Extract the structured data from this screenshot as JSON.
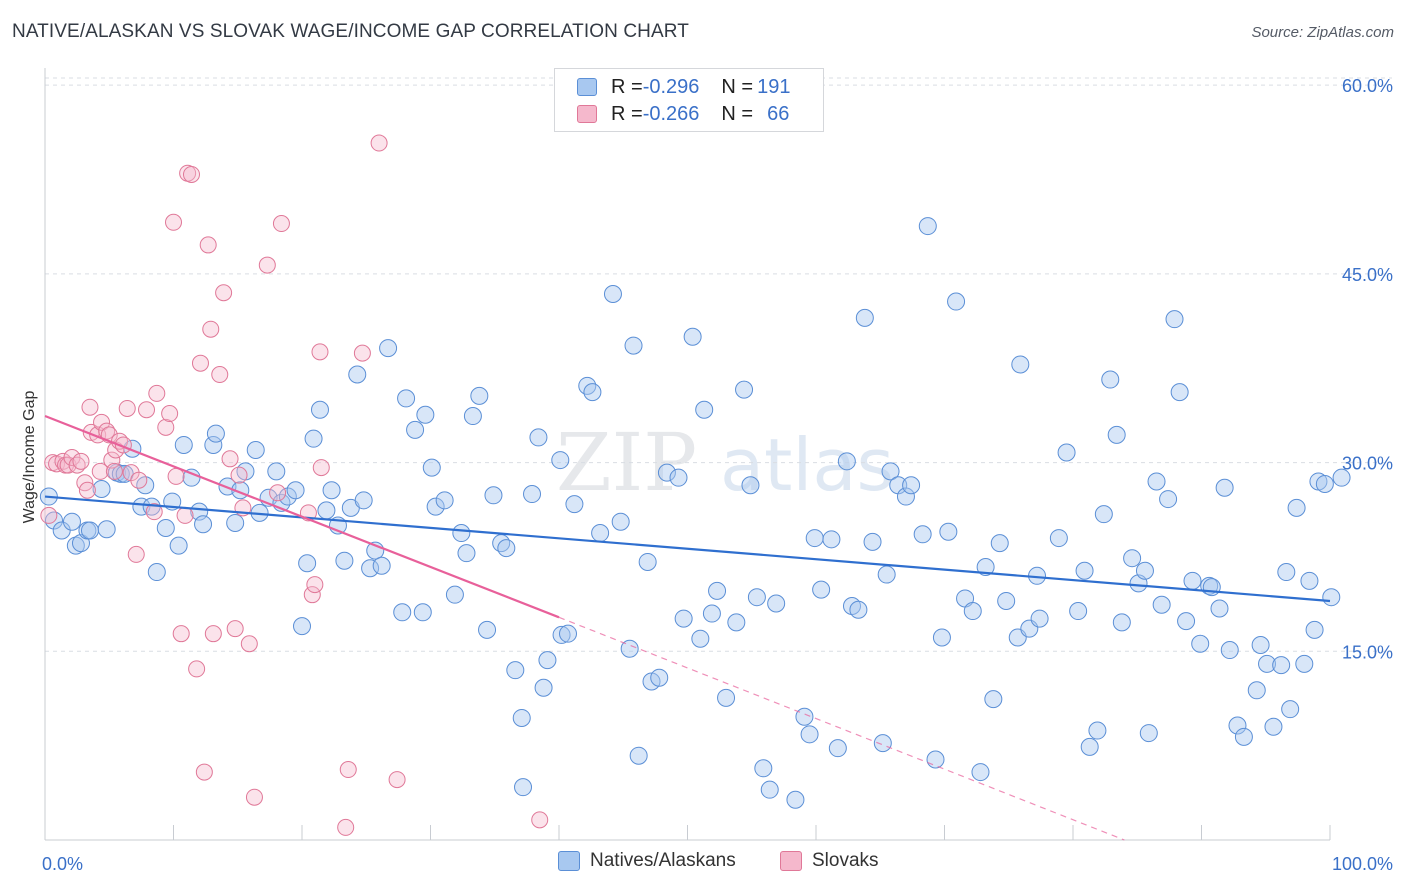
{
  "title": "NATIVE/ALASKAN VS SLOVAK WAGE/INCOME GAP CORRELATION CHART",
  "source": "Source: ZipAtlas.com",
  "watermark": {
    "zip": "ZIP",
    "atlas": "atlas"
  },
  "legend_top": [
    {
      "r_label": "R = ",
      "r_value": "-0.296",
      "n_label": "N = ",
      "n_value": "191",
      "color": "#a8c8f0"
    },
    {
      "r_label": "R = ",
      "r_value": "-0.266",
      "n_label": "N = ",
      "n_value": "66",
      "color": "#f5b8cc"
    }
  ],
  "legend_bottom": [
    {
      "label": "Natives/Alaskans",
      "color": "#a8c8f0"
    },
    {
      "label": "Slovaks",
      "color": "#f5b8cc"
    }
  ],
  "colors": {
    "blue_fill": "#a8c8f0",
    "blue_stroke": "#5b8fd6",
    "blue_line": "#2f6fcf",
    "pink_fill": "#f5b8cc",
    "pink_stroke": "#e07898",
    "pink_line": "#e8609a",
    "tick_label": "#3a70c8",
    "grid": "#d9dde3"
  },
  "chart_data": {
    "type": "scatter",
    "xlabel": "",
    "ylabel": "Wage/Income Gap",
    "xlim": [
      0,
      100
    ],
    "ylim": [
      0,
      62
    ],
    "x_tick_labels": [
      "0.0%",
      "100.0%"
    ],
    "x_tick_values": [
      0,
      100
    ],
    "x_minor_ticks": [
      10,
      20,
      30,
      40,
      50,
      60,
      70,
      80,
      90,
      100
    ],
    "y_tick_labels": [
      "15.0%",
      "30.0%",
      "45.0%",
      "60.0%"
    ],
    "y_tick_values": [
      15,
      30,
      45,
      60
    ],
    "grid": "horizontal dashed",
    "legend_position": "top-center",
    "series": [
      {
        "name": "Natives/Alaskans",
        "color": "#a8c8f0",
        "trend": {
          "x": [
            0,
            100
          ],
          "y": [
            27.3,
            19.0
          ]
        },
        "points": [
          [
            0.3,
            27.3
          ],
          [
            0.7,
            25.4
          ],
          [
            1.3,
            24.6
          ],
          [
            2.1,
            25.3
          ],
          [
            2.4,
            23.4
          ],
          [
            2.8,
            23.6
          ],
          [
            3.3,
            24.6
          ],
          [
            3.5,
            24.6
          ],
          [
            4.4,
            27.9
          ],
          [
            4.8,
            24.7
          ],
          [
            5.6,
            29.2
          ],
          [
            5.9,
            29.1
          ],
          [
            6.2,
            29.1
          ],
          [
            6.8,
            31.1
          ],
          [
            7.5,
            26.5
          ],
          [
            7.8,
            28.2
          ],
          [
            8.3,
            26.5
          ],
          [
            8.7,
            21.3
          ],
          [
            9.4,
            24.8
          ],
          [
            9.9,
            26.9
          ],
          [
            10.4,
            23.4
          ],
          [
            10.8,
            31.4
          ],
          [
            11.4,
            28.8
          ],
          [
            12.0,
            26.1
          ],
          [
            12.3,
            25.1
          ],
          [
            13.1,
            31.4
          ],
          [
            13.3,
            32.3
          ],
          [
            14.2,
            28.1
          ],
          [
            14.8,
            25.2
          ],
          [
            15.2,
            27.8
          ],
          [
            15.6,
            29.3
          ],
          [
            16.4,
            31.0
          ],
          [
            16.7,
            26.0
          ],
          [
            17.4,
            27.2
          ],
          [
            18.0,
            29.3
          ],
          [
            18.4,
            26.8
          ],
          [
            18.9,
            27.3
          ],
          [
            19.5,
            27.8
          ],
          [
            20.0,
            17.0
          ],
          [
            20.4,
            22.0
          ],
          [
            20.9,
            31.9
          ],
          [
            21.4,
            34.2
          ],
          [
            21.9,
            26.2
          ],
          [
            22.3,
            27.8
          ],
          [
            22.8,
            25.0
          ],
          [
            23.3,
            22.2
          ],
          [
            23.8,
            26.4
          ],
          [
            24.3,
            37.0
          ],
          [
            24.8,
            27.0
          ],
          [
            25.3,
            21.6
          ],
          [
            25.7,
            23.0
          ],
          [
            26.2,
            21.8
          ],
          [
            26.7,
            39.1
          ],
          [
            27.8,
            18.1
          ],
          [
            28.1,
            35.1
          ],
          [
            28.8,
            32.6
          ],
          [
            29.4,
            18.1
          ],
          [
            29.6,
            33.8
          ],
          [
            30.1,
            29.6
          ],
          [
            30.4,
            26.5
          ],
          [
            31.1,
            27.0
          ],
          [
            31.9,
            19.5
          ],
          [
            32.4,
            24.4
          ],
          [
            32.8,
            22.8
          ],
          [
            33.3,
            33.7
          ],
          [
            33.8,
            35.3
          ],
          [
            34.4,
            16.7
          ],
          [
            34.9,
            27.4
          ],
          [
            35.5,
            23.6
          ],
          [
            35.9,
            23.2
          ],
          [
            36.6,
            13.5
          ],
          [
            37.1,
            9.7
          ],
          [
            37.2,
            4.2
          ],
          [
            37.9,
            27.5
          ],
          [
            38.4,
            32.0
          ],
          [
            38.8,
            12.1
          ],
          [
            39.1,
            14.3
          ],
          [
            40.1,
            30.2
          ],
          [
            40.2,
            16.3
          ],
          [
            40.7,
            16.4
          ],
          [
            41.2,
            26.7
          ],
          [
            42.2,
            36.1
          ],
          [
            42.6,
            35.6
          ],
          [
            43.2,
            24.4
          ],
          [
            44.2,
            43.4
          ],
          [
            44.8,
            25.3
          ],
          [
            45.5,
            15.2
          ],
          [
            45.8,
            39.3
          ],
          [
            46.2,
            6.7
          ],
          [
            46.9,
            22.1
          ],
          [
            47.2,
            12.6
          ],
          [
            47.8,
            12.9
          ],
          [
            48.4,
            29.2
          ],
          [
            49.3,
            28.8
          ],
          [
            49.7,
            17.6
          ],
          [
            50.4,
            40.0
          ],
          [
            51.0,
            16.0
          ],
          [
            51.3,
            34.2
          ],
          [
            51.9,
            18.0
          ],
          [
            52.3,
            19.8
          ],
          [
            53.0,
            11.3
          ],
          [
            53.8,
            17.3
          ],
          [
            54.4,
            35.8
          ],
          [
            54.9,
            28.2
          ],
          [
            55.4,
            19.3
          ],
          [
            55.9,
            5.7
          ],
          [
            56.4,
            4.0
          ],
          [
            56.9,
            18.8
          ],
          [
            58.4,
            3.2
          ],
          [
            59.1,
            9.8
          ],
          [
            59.5,
            8.4
          ],
          [
            59.9,
            24.0
          ],
          [
            60.4,
            19.9
          ],
          [
            61.2,
            23.9
          ],
          [
            61.7,
            7.3
          ],
          [
            62.4,
            30.1
          ],
          [
            62.8,
            18.6
          ],
          [
            63.3,
            18.3
          ],
          [
            63.8,
            41.5
          ],
          [
            64.4,
            23.7
          ],
          [
            65.2,
            7.7
          ],
          [
            65.5,
            21.1
          ],
          [
            65.8,
            29.3
          ],
          [
            66.4,
            28.2
          ],
          [
            67.0,
            27.3
          ],
          [
            67.4,
            28.2
          ],
          [
            68.3,
            24.3
          ],
          [
            68.7,
            48.8
          ],
          [
            69.3,
            6.4
          ],
          [
            69.8,
            16.1
          ],
          [
            70.3,
            24.5
          ],
          [
            70.9,
            42.8
          ],
          [
            71.6,
            19.2
          ],
          [
            72.2,
            18.2
          ],
          [
            72.8,
            5.4
          ],
          [
            73.2,
            21.7
          ],
          [
            73.8,
            11.2
          ],
          [
            74.3,
            23.6
          ],
          [
            74.8,
            19.0
          ],
          [
            75.7,
            16.1
          ],
          [
            75.9,
            37.8
          ],
          [
            76.6,
            16.8
          ],
          [
            77.2,
            21.0
          ],
          [
            77.4,
            17.6
          ],
          [
            78.9,
            24.0
          ],
          [
            79.5,
            30.8
          ],
          [
            80.4,
            18.2
          ],
          [
            80.9,
            21.4
          ],
          [
            81.3,
            7.4
          ],
          [
            81.9,
            8.7
          ],
          [
            82.4,
            25.9
          ],
          [
            82.9,
            36.6
          ],
          [
            83.4,
            32.2
          ],
          [
            83.8,
            17.3
          ],
          [
            84.6,
            22.4
          ],
          [
            85.1,
            20.4
          ],
          [
            85.6,
            21.4
          ],
          [
            85.9,
            8.5
          ],
          [
            86.5,
            28.5
          ],
          [
            86.9,
            18.7
          ],
          [
            87.4,
            27.1
          ],
          [
            87.9,
            41.4
          ],
          [
            88.3,
            35.6
          ],
          [
            88.8,
            17.4
          ],
          [
            89.3,
            20.6
          ],
          [
            89.9,
            15.6
          ],
          [
            90.6,
            20.2
          ],
          [
            90.8,
            20.1
          ],
          [
            91.4,
            18.4
          ],
          [
            91.8,
            28.0
          ],
          [
            92.2,
            15.1
          ],
          [
            92.8,
            9.1
          ],
          [
            93.3,
            8.2
          ],
          [
            94.3,
            11.9
          ],
          [
            94.6,
            15.5
          ],
          [
            95.1,
            14.0
          ],
          [
            95.6,
            9.0
          ],
          [
            96.2,
            13.9
          ],
          [
            96.6,
            21.3
          ],
          [
            96.9,
            10.4
          ],
          [
            97.4,
            26.4
          ],
          [
            98.0,
            14.0
          ],
          [
            98.4,
            20.6
          ],
          [
            98.8,
            16.7
          ],
          [
            99.1,
            28.5
          ],
          [
            99.6,
            28.3
          ],
          [
            100.1,
            19.3
          ],
          [
            100.9,
            28.8
          ]
        ]
      },
      {
        "name": "Slovaks",
        "color": "#f5b8cc",
        "trend": {
          "x": [
            0,
            40
          ],
          "y": [
            33.7,
            17.7
          ]
        },
        "trend_dashed": {
          "x": [
            40,
            84
          ],
          "y": [
            17.7,
            0
          ]
        },
        "points": [
          [
            0.3,
            25.8
          ],
          [
            0.6,
            30.0
          ],
          [
            0.9,
            29.9
          ],
          [
            1.4,
            30.1
          ],
          [
            1.6,
            29.8
          ],
          [
            1.8,
            29.8
          ],
          [
            2.1,
            30.4
          ],
          [
            2.5,
            29.8
          ],
          [
            2.8,
            30.1
          ],
          [
            3.1,
            28.4
          ],
          [
            3.3,
            27.8
          ],
          [
            3.5,
            34.4
          ],
          [
            3.6,
            32.4
          ],
          [
            4.1,
            32.2
          ],
          [
            4.3,
            29.3
          ],
          [
            4.4,
            33.2
          ],
          [
            4.8,
            32.5
          ],
          [
            5.0,
            32.2
          ],
          [
            5.2,
            30.2
          ],
          [
            5.4,
            29.3
          ],
          [
            5.5,
            31.0
          ],
          [
            5.8,
            31.7
          ],
          [
            6.1,
            31.4
          ],
          [
            6.4,
            34.3
          ],
          [
            6.7,
            29.2
          ],
          [
            7.1,
            22.7
          ],
          [
            7.3,
            28.6
          ],
          [
            7.9,
            34.2
          ],
          [
            8.5,
            26.1
          ],
          [
            8.7,
            35.5
          ],
          [
            9.4,
            32.8
          ],
          [
            9.7,
            33.9
          ],
          [
            10.0,
            49.1
          ],
          [
            10.2,
            28.9
          ],
          [
            10.6,
            16.4
          ],
          [
            10.9,
            25.8
          ],
          [
            11.1,
            53.0
          ],
          [
            11.4,
            52.9
          ],
          [
            11.8,
            13.6
          ],
          [
            12.1,
            37.9
          ],
          [
            12.4,
            5.4
          ],
          [
            12.7,
            47.3
          ],
          [
            12.9,
            40.6
          ],
          [
            13.1,
            16.4
          ],
          [
            13.6,
            37.0
          ],
          [
            13.9,
            43.5
          ],
          [
            14.4,
            30.3
          ],
          [
            14.8,
            16.8
          ],
          [
            15.1,
            29.0
          ],
          [
            15.4,
            26.4
          ],
          [
            15.9,
            15.6
          ],
          [
            16.3,
            3.4
          ],
          [
            17.3,
            45.7
          ],
          [
            18.1,
            27.6
          ],
          [
            18.4,
            49.0
          ],
          [
            20.5,
            26.0
          ],
          [
            20.8,
            19.5
          ],
          [
            21.0,
            20.3
          ],
          [
            21.4,
            38.8
          ],
          [
            21.5,
            29.6
          ],
          [
            23.4,
            1.0
          ],
          [
            23.6,
            5.6
          ],
          [
            24.7,
            38.7
          ],
          [
            26.0,
            55.4
          ],
          [
            27.4,
            4.8
          ],
          [
            38.5,
            1.6
          ]
        ]
      }
    ]
  }
}
